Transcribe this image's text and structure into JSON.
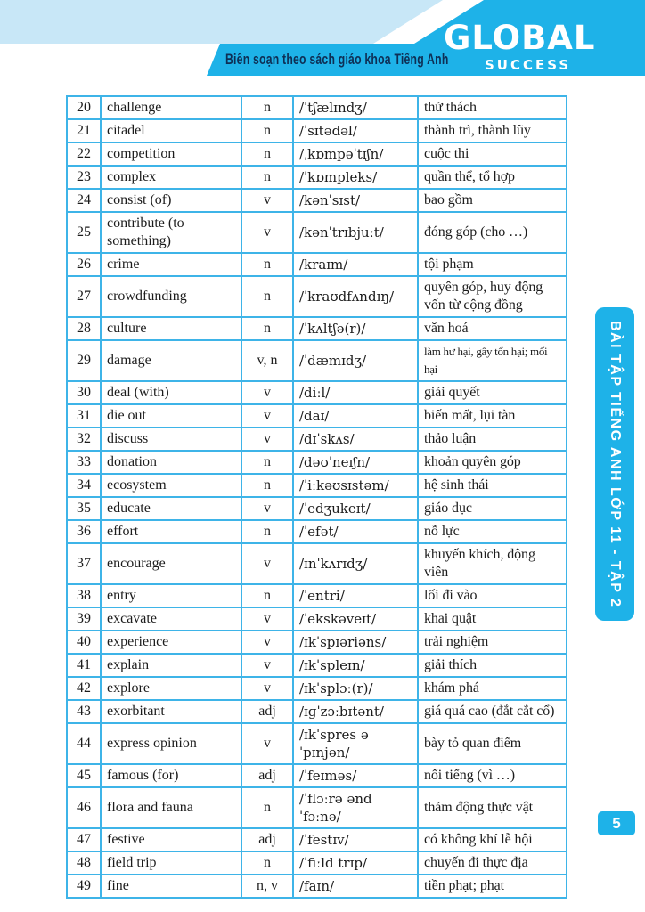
{
  "header": {
    "tagline": "Biên soạn theo sách giáo khoa Tiếng Anh",
    "logo_line1": "GLOBAL",
    "logo_line2": "SUCCESS"
  },
  "sidebar": {
    "label": "BÀI TẬP TIẾNG ANH LỚP 11 - TẬP 2"
  },
  "page_number": "5",
  "colors": {
    "cyan": "#1eb2e8",
    "light_blue": "#c8e7f7",
    "table_border": "#3eb4e8",
    "navy_text": "#0e2f55",
    "table_text": "#1c1c1c"
  },
  "table": {
    "rows": [
      {
        "num": "20",
        "word": "challenge",
        "pos": "n",
        "ipa": "/ˈtʃælɪndʒ/",
        "meaning": "thử thách"
      },
      {
        "num": "21",
        "word": "citadel",
        "pos": "n",
        "ipa": "/ˈsɪtədəl/",
        "meaning": "thành trì, thành lũy"
      },
      {
        "num": "22",
        "word": "competition",
        "pos": "n",
        "ipa": "/ˌkɒmpəˈtɪʃn/",
        "meaning": "cuộc thi"
      },
      {
        "num": "23",
        "word": "complex",
        "pos": "n",
        "ipa": "/ˈkɒmpleks/",
        "meaning": "quần thể, tổ hợp"
      },
      {
        "num": "24",
        "word": "consist (of)",
        "pos": "v",
        "ipa": "/kənˈsɪst/",
        "meaning": "bao gồm"
      },
      {
        "num": "25",
        "word": "contribute (to something)",
        "pos": "v",
        "ipa": "/kənˈtrɪbjuːt/",
        "meaning": "đóng góp (cho …)"
      },
      {
        "num": "26",
        "word": "crime",
        "pos": "n",
        "ipa": "/kraɪm/",
        "meaning": "tội phạm"
      },
      {
        "num": "27",
        "word": "crowdfunding",
        "pos": "n",
        "ipa": "/ˈkraʊdfʌndɪŋ/",
        "meaning": "quyên góp, huy động vốn từ cộng đồng"
      },
      {
        "num": "28",
        "word": "culture",
        "pos": "n",
        "ipa": "/ˈkʌltʃə(r)/",
        "meaning": "văn hoá"
      },
      {
        "num": "29",
        "word": "damage",
        "pos": "v, n",
        "ipa": "/ˈdæmɪdʒ/",
        "meaning": "làm hư hại, gây tổn hại; mối hại",
        "condensed": true
      },
      {
        "num": "30",
        "word": "deal (with)",
        "pos": "v",
        "ipa": "/diːl/",
        "meaning": "giải quyết"
      },
      {
        "num": "31",
        "word": "die out",
        "pos": "v",
        "ipa": "/daɪ/",
        "meaning": "biến mất, lụi tàn"
      },
      {
        "num": "32",
        "word": "discuss",
        "pos": "v",
        "ipa": "/dɪˈskʌs/",
        "meaning": "thảo luận"
      },
      {
        "num": "33",
        "word": "donation",
        "pos": "n",
        "ipa": "/dəʊˈneɪʃn/",
        "meaning": "khoản quyên góp"
      },
      {
        "num": "34",
        "word": "ecosystem",
        "pos": "n",
        "ipa": "/ˈiːkəʊsɪstəm/",
        "meaning": "hệ sinh thái"
      },
      {
        "num": "35",
        "word": "educate",
        "pos": "v",
        "ipa": "/ˈedʒukeɪt/",
        "meaning": "giáo dục"
      },
      {
        "num": "36",
        "word": "effort",
        "pos": "n",
        "ipa": "/ˈefət/",
        "meaning": "nỗ lực"
      },
      {
        "num": "37",
        "word": "encourage",
        "pos": "v",
        "ipa": "/ɪnˈkʌrɪdʒ/",
        "meaning": "khuyến khích, động viên"
      },
      {
        "num": "38",
        "word": "entry",
        "pos": "n",
        "ipa": "/ˈentri/",
        "meaning": "lối đi vào"
      },
      {
        "num": "39",
        "word": "excavate",
        "pos": "v",
        "ipa": "/ˈekskəveɪt/",
        "meaning": "khai quật"
      },
      {
        "num": "40",
        "word": "experience",
        "pos": "v",
        "ipa": "/ɪkˈspɪəriəns/",
        "meaning": "trải nghiệm"
      },
      {
        "num": "41",
        "word": "explain",
        "pos": "v",
        "ipa": "/ɪkˈspleɪn/",
        "meaning": "giải thích"
      },
      {
        "num": "42",
        "word": "explore",
        "pos": "v",
        "ipa": "/ɪkˈsplɔː(r)/",
        "meaning": "khám phá"
      },
      {
        "num": "43",
        "word": "exorbitant",
        "pos": "adj",
        "ipa": "/ɪɡˈzɔːbɪtənt/",
        "meaning": "giá quá cao (đắt cắt cổ)"
      },
      {
        "num": "44",
        "word": "express opinion",
        "pos": "v",
        "ipa": "/ɪkˈspres əˈpɪnjən/",
        "meaning": "bày tỏ quan điểm"
      },
      {
        "num": "45",
        "word": "famous (for)",
        "pos": "adj",
        "ipa": "/ˈfeɪməs/",
        "meaning": "nổi tiếng (vì …)"
      },
      {
        "num": "46",
        "word": "flora and fauna",
        "pos": "n",
        "ipa": "/ˈflɔːrə ənd ˈfɔːnə/",
        "meaning": "thảm động thực vật"
      },
      {
        "num": "47",
        "word": "festive",
        "pos": "adj",
        "ipa": "/ˈfestɪv/",
        "meaning": "có không khí lễ hội"
      },
      {
        "num": "48",
        "word": "field trip",
        "pos": "n",
        "ipa": "/ˈfiːld trɪp/",
        "meaning": "chuyến đi thực địa"
      },
      {
        "num": "49",
        "word": "fine",
        "pos": "n, v",
        "ipa": "/faɪn/",
        "meaning": "tiền phạt; phạt"
      }
    ]
  }
}
